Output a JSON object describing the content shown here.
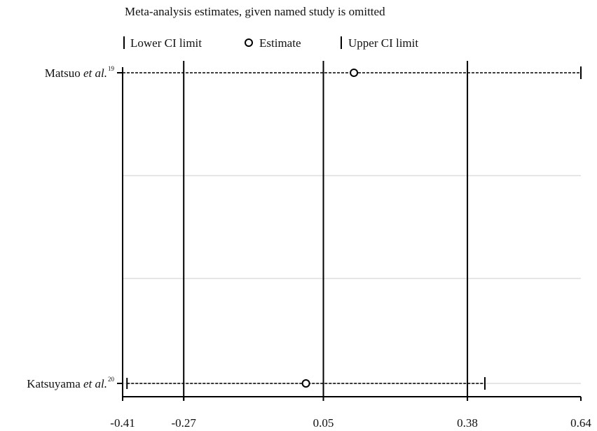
{
  "chart_data": {
    "type": "sensitivity-interval",
    "title": "Meta-analysis estimates, given named study is omitted",
    "legend": {
      "placement": "top",
      "lower_label": "Lower CI limit",
      "estimate_label": "Estimate",
      "upper_label": "Upper CI limit"
    },
    "xlim": [
      -0.41,
      0.64
    ],
    "x_ticks": [
      "-0.41",
      "-0.27",
      "0.05",
      "0.38",
      "0.64"
    ],
    "x_tick_values": [
      -0.41,
      -0.27,
      0.05,
      0.38,
      0.64
    ],
    "reference_lines": [
      -0.27,
      0.05,
      0.38
    ],
    "studies": [
      {
        "name": "Matsuo",
        "suffix": "et al.",
        "ref": "19",
        "lower": -0.41,
        "estimate": 0.12,
        "upper": 0.64
      },
      {
        "name": "Katsuyama",
        "suffix": "et al.",
        "ref": "20",
        "lower": -0.4,
        "estimate": 0.01,
        "upper": 0.42
      }
    ],
    "colors": {
      "line": "#000000",
      "grid": "#e6e6e6"
    }
  }
}
